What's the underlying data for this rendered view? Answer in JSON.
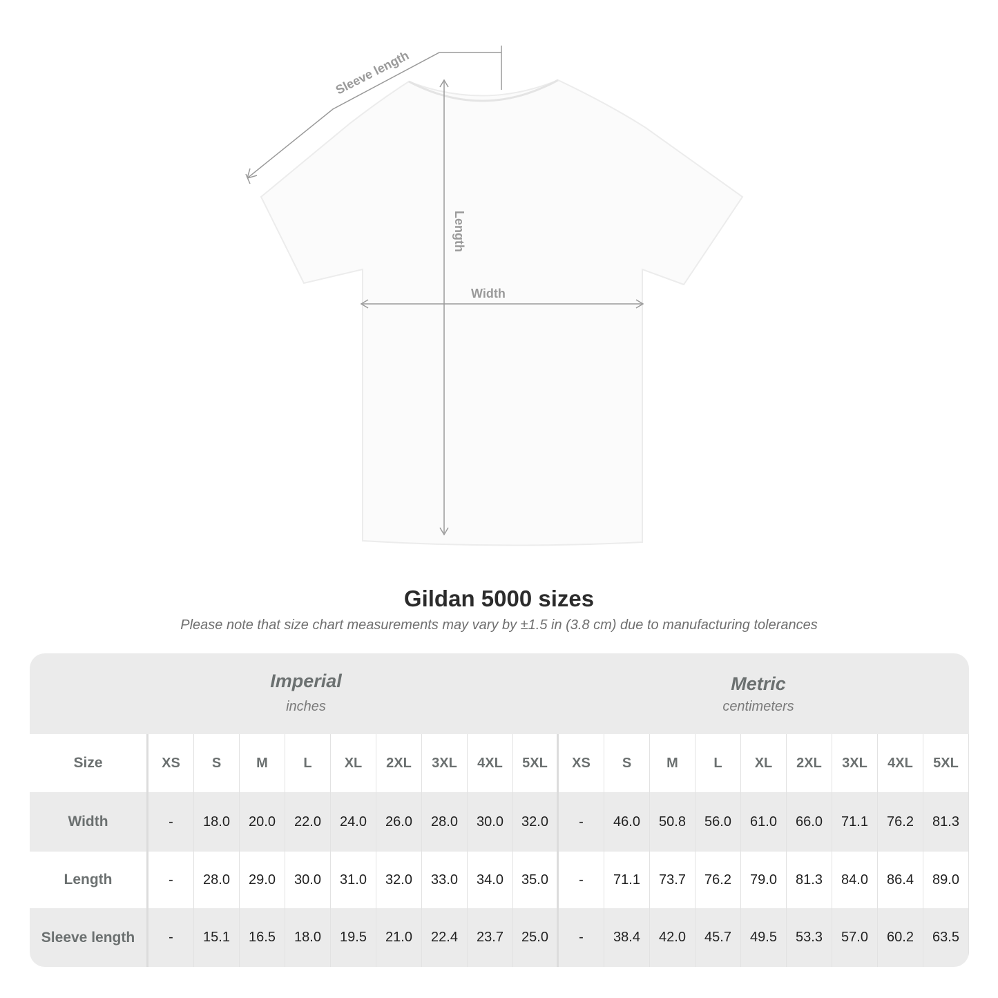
{
  "diagram": {
    "labels": {
      "sleeve": "Sleeve length",
      "length": "Length",
      "width": "Width"
    },
    "line_color": "#9a9a9a"
  },
  "title": "Gildan 5000 sizes",
  "note": "Please note that size chart measurements may vary by ±1.5 in (3.8 cm) due to manufacturing tolerances",
  "table": {
    "imperial": {
      "name": "Imperial",
      "unit": "inches"
    },
    "metric": {
      "name": "Metric",
      "unit": "centimeters"
    },
    "size_label": "Size",
    "sizes": [
      "XS",
      "S",
      "M",
      "L",
      "XL",
      "2XL",
      "3XL",
      "4XL",
      "5XL"
    ],
    "rows": [
      {
        "label": "Width",
        "imperial": [
          "-",
          "18.0",
          "20.0",
          "22.0",
          "24.0",
          "26.0",
          "28.0",
          "30.0",
          "32.0"
        ],
        "metric": [
          "-",
          "46.0",
          "50.8",
          "56.0",
          "61.0",
          "66.0",
          "71.1",
          "76.2",
          "81.3"
        ]
      },
      {
        "label": "Length",
        "imperial": [
          "-",
          "28.0",
          "29.0",
          "30.0",
          "31.0",
          "32.0",
          "33.0",
          "34.0",
          "35.0"
        ],
        "metric": [
          "-",
          "71.1",
          "73.7",
          "76.2",
          "79.0",
          "81.3",
          "84.0",
          "86.4",
          "89.0"
        ]
      },
      {
        "label": "Sleeve length",
        "imperial": [
          "-",
          "15.1",
          "16.5",
          "18.0",
          "19.5",
          "21.0",
          "22.4",
          "23.7",
          "25.0"
        ],
        "metric": [
          "-",
          "38.4",
          "42.0",
          "45.7",
          "49.5",
          "53.3",
          "57.0",
          "60.2",
          "63.5"
        ]
      }
    ],
    "header_bg": "#ebebeb"
  }
}
